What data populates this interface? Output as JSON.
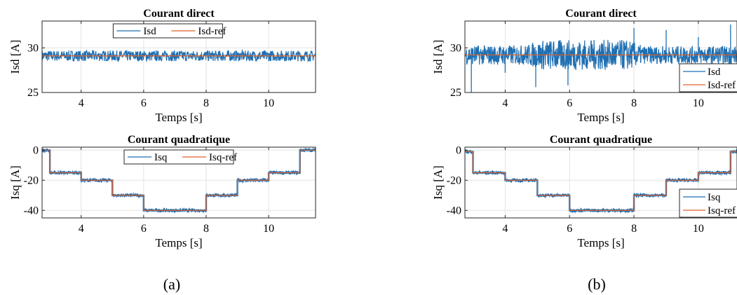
{
  "colors": {
    "measured": "#1f6fb2",
    "reference": "#e0622a",
    "axis": "#262626",
    "grid": "#e3e3e3"
  },
  "captions": [
    "(a)",
    "(b)"
  ],
  "chart_data": [
    {
      "id": "a-top",
      "type": "line",
      "title": "Courant direct",
      "xlabel": "Temps [s]",
      "ylabel": "Isd [A]",
      "xlim": [
        2.75,
        11.5
      ],
      "ylim": [
        25,
        33
      ],
      "xticks": [
        4,
        6,
        8,
        10
      ],
      "yticks": [
        25,
        30
      ],
      "grid": true,
      "legend": "top-center",
      "legend_orientation": "horizontal",
      "legend_box_range": [
        0.26,
        0.66
      ],
      "series": [
        {
          "name": "Isd",
          "role": "measured",
          "noise": 0.6,
          "mean": [
            [
              2.75,
              29.1
            ],
            [
              11.5,
              29.1
            ]
          ]
        },
        {
          "name": "Isd-ref",
          "role": "reference",
          "points": [
            [
              2.75,
              29.1
            ],
            [
              11.5,
              29.1
            ]
          ]
        }
      ]
    },
    {
      "id": "a-bot",
      "type": "line",
      "title": "Courant quadratique",
      "xlabel": "Temps [s]",
      "ylabel": "Isq [A]",
      "xlim": [
        2.75,
        11.5
      ],
      "ylim": [
        -45,
        2
      ],
      "xticks": [
        4,
        6,
        8,
        10
      ],
      "yticks": [
        -40,
        -20,
        0
      ],
      "grid": true,
      "legend": "top-center",
      "legend_orientation": "horizontal",
      "legend_box_range": [
        0.3,
        0.7
      ],
      "series": [
        {
          "name": "Isq",
          "role": "measured",
          "noise": 1.2,
          "steps": [
            [
              2.75,
              0
            ],
            [
              3,
              -15
            ],
            [
              4,
              -20
            ],
            [
              5,
              -30
            ],
            [
              6,
              -40
            ],
            [
              8,
              -30
            ],
            [
              9,
              -20
            ],
            [
              10,
              -15
            ],
            [
              11,
              0
            ],
            [
              11.5,
              0
            ]
          ]
        },
        {
          "name": "Isq-ref",
          "role": "reference",
          "steps": [
            [
              2.75,
              0
            ],
            [
              3,
              -15
            ],
            [
              4,
              -20
            ],
            [
              5,
              -30
            ],
            [
              6,
              -40
            ],
            [
              8,
              -30
            ],
            [
              9,
              -20
            ],
            [
              10,
              -15
            ],
            [
              11,
              0
            ],
            [
              11.5,
              0
            ]
          ]
        }
      ]
    },
    {
      "id": "b-top",
      "type": "line",
      "title": "Courant direct",
      "xlabel": "Temps [s]",
      "ylabel": "Isd [A]",
      "xlim": [
        2.75,
        11.2
      ],
      "ylim": [
        25,
        33
      ],
      "xticks": [
        4,
        6,
        8,
        10
      ],
      "yticks": [
        25,
        30
      ],
      "grid": true,
      "legend": "bottom-right",
      "legend_orientation": "vertical",
      "series": [
        {
          "name": "Isd",
          "role": "measured",
          "noise": 1.2,
          "noise_profile": [
            [
              2.75,
              1.1
            ],
            [
              4.6,
              1.1
            ],
            [
              5.2,
              1.7
            ],
            [
              7.8,
              1.7
            ],
            [
              8.3,
              1.0
            ],
            [
              11.2,
              1.0
            ]
          ],
          "mean": [
            [
              2.75,
              29.2
            ],
            [
              11.2,
              29.2
            ]
          ],
          "spikes": [
            [
              2.95,
              25.0
            ],
            [
              4.0,
              27.2
            ],
            [
              4.95,
              25.6
            ],
            [
              5.95,
              25.8
            ],
            [
              8.0,
              32.2
            ],
            [
              9.0,
              32.0
            ],
            [
              10.0,
              31.2
            ],
            [
              11.0,
              32.6
            ]
          ]
        },
        {
          "name": "Isd-ref",
          "role": "reference",
          "points": [
            [
              2.75,
              29.2
            ],
            [
              11.2,
              29.2
            ]
          ]
        }
      ]
    },
    {
      "id": "b-bot",
      "type": "line",
      "title": "Courant quadratique",
      "xlabel": "Temps [s]",
      "ylabel": "Isq [A]",
      "xlim": [
        2.75,
        11.2
      ],
      "ylim": [
        -45,
        2
      ],
      "xticks": [
        4,
        6,
        8,
        10
      ],
      "yticks": [
        -40,
        -20,
        0
      ],
      "grid": true,
      "legend": "bottom-right",
      "legend_orientation": "vertical",
      "series": [
        {
          "name": "Isq",
          "role": "measured",
          "noise": 1.2,
          "steps": [
            [
              2.75,
              -1
            ],
            [
              3,
              -15
            ],
            [
              4,
              -20
            ],
            [
              5,
              -30
            ],
            [
              6,
              -40
            ],
            [
              8,
              -30
            ],
            [
              9,
              -20
            ],
            [
              10,
              -15
            ],
            [
              11,
              -1
            ],
            [
              11.2,
              -1
            ]
          ]
        },
        {
          "name": "Isq-ref",
          "role": "reference",
          "steps": [
            [
              2.75,
              -1
            ],
            [
              3,
              -15
            ],
            [
              4,
              -20
            ],
            [
              5,
              -30
            ],
            [
              6,
              -40
            ],
            [
              8,
              -30
            ],
            [
              9,
              -20
            ],
            [
              10,
              -15
            ],
            [
              11,
              -1
            ],
            [
              11.2,
              -1
            ]
          ]
        }
      ]
    }
  ]
}
